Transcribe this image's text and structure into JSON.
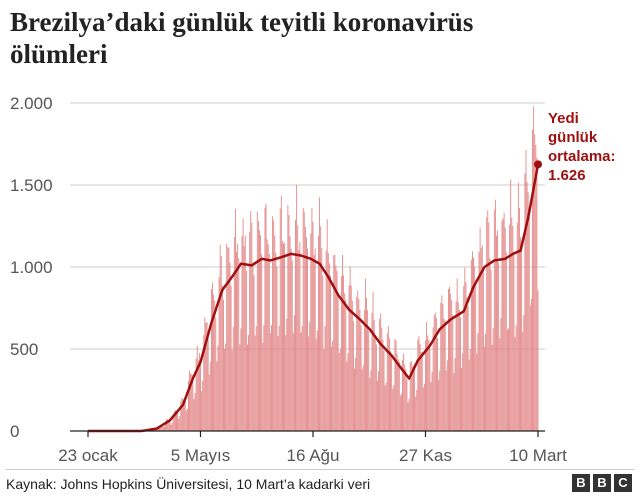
{
  "header": {
    "title_line1": "Brezilya’daki günlük teyitli koronavirüs",
    "title_line2": "ölümleri"
  },
  "footer": {
    "source": "Kaynak: Johns Hopkins Üniversitesi, 10 Mart’a kadarki veri",
    "logo_letters": [
      "B",
      "B",
      "C"
    ]
  },
  "colors": {
    "bar": "#e38a8a",
    "line": "#9e0f0f",
    "grid": "#cccccc",
    "axis": "#222222",
    "annotation": "#9e0f0f"
  },
  "chart_data": {
    "type": "bar",
    "title": "Brezilya’daki günlük teyitli koronavirüs ölümleri",
    "x_start": "2020-01-23",
    "x_end": "2021-03-10",
    "xlim": [
      "2020-01-23",
      "2021-03-10"
    ],
    "ylim": [
      0,
      2000
    ],
    "yticks": [
      0,
      500,
      1000,
      1500,
      2000
    ],
    "ytick_labels": [
      "0",
      "500",
      "1.000",
      "1.500",
      "2.000"
    ],
    "xticks": [
      "2020-01-23",
      "2020-05-05",
      "2020-08-16",
      "2020-11-27",
      "2021-03-10"
    ],
    "xtick_labels": [
      "23 ocak",
      "5 Mayıs",
      "16 Ağu",
      "27 Kas",
      "10 Mart"
    ],
    "grid": true,
    "series": [
      {
        "type": "bar",
        "daily_deaths_approx": "derived from average with weekly variation"
      },
      {
        "type": "line",
        "name": "Yedi günlük ortalama"
      }
    ],
    "avg_keypoints": [
      [
        "2020-01-23",
        0
      ],
      [
        "2020-03-12",
        0
      ],
      [
        "2020-03-26",
        15
      ],
      [
        "2020-04-07",
        65
      ],
      [
        "2020-04-19",
        160
      ],
      [
        "2020-04-28",
        320
      ],
      [
        "2020-05-05",
        420
      ],
      [
        "2020-05-15",
        660
      ],
      [
        "2020-05-25",
        860
      ],
      [
        "2020-06-04",
        950
      ],
      [
        "2020-06-11",
        1020
      ],
      [
        "2020-06-21",
        1010
      ],
      [
        "2020-06-30",
        1050
      ],
      [
        "2020-07-08",
        1040
      ],
      [
        "2020-07-18",
        1060
      ],
      [
        "2020-07-27",
        1080
      ],
      [
        "2020-08-05",
        1070
      ],
      [
        "2020-08-14",
        1050
      ],
      [
        "2020-08-22",
        1020
      ],
      [
        "2020-08-30",
        940
      ],
      [
        "2020-09-08",
        830
      ],
      [
        "2020-09-18",
        740
      ],
      [
        "2020-09-28",
        680
      ],
      [
        "2020-10-07",
        620
      ],
      [
        "2020-10-17",
        530
      ],
      [
        "2020-10-27",
        460
      ],
      [
        "2020-11-05",
        380
      ],
      [
        "2020-11-12",
        320
      ],
      [
        "2020-11-20",
        430
      ],
      [
        "2020-12-01",
        520
      ],
      [
        "2020-12-10",
        620
      ],
      [
        "2020-12-20",
        680
      ],
      [
        "2021-01-01",
        730
      ],
      [
        "2021-01-10",
        880
      ],
      [
        "2021-01-20",
        1000
      ],
      [
        "2021-01-29",
        1040
      ],
      [
        "2021-02-08",
        1050
      ],
      [
        "2021-02-15",
        1080
      ],
      [
        "2021-02-22",
        1100
      ],
      [
        "2021-03-01",
        1300
      ],
      [
        "2021-03-06",
        1480
      ],
      [
        "2021-03-10",
        1626
      ]
    ],
    "annotation": {
      "lines": [
        "Yedi",
        "günlük",
        "ortalama:",
        "1.626"
      ],
      "value": 1626,
      "date": "2021-03-10"
    }
  }
}
